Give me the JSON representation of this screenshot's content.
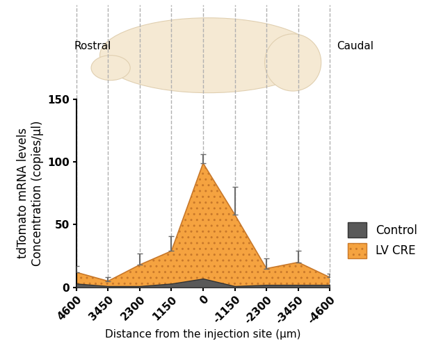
{
  "chart_data": {
    "type": "area",
    "x_label": "Distance from the injection site (µm)",
    "y_label": "tdTomato mRNA levels\nConcentration (copies/µl)",
    "annotations": [
      "Rostral",
      "Caudal"
    ],
    "x": [
      4600,
      3450,
      2300,
      1150,
      0,
      -1150,
      -2300,
      -3450,
      -4600
    ],
    "xlim": [
      4600,
      -4600
    ],
    "xticks": [
      4600,
      3450,
      2300,
      1150,
      0,
      -1150,
      -2300,
      -3450,
      -4600
    ],
    "ylim": [
      0,
      150
    ],
    "yticks": [
      0,
      50,
      100,
      150
    ],
    "legend": "center left",
    "series": [
      {
        "name": "LV CRE",
        "color": "#f5a340",
        "values": [
          12,
          5,
          18,
          29,
          99,
          58,
          15,
          20,
          8
        ],
        "error_upper": [
          5,
          3,
          9,
          12,
          7,
          22,
          8,
          9,
          3
        ]
      },
      {
        "name": "Control",
        "color": "#595959",
        "values": [
          3,
          1,
          1,
          3,
          7,
          1,
          2,
          2,
          2
        ]
      }
    ]
  }
}
